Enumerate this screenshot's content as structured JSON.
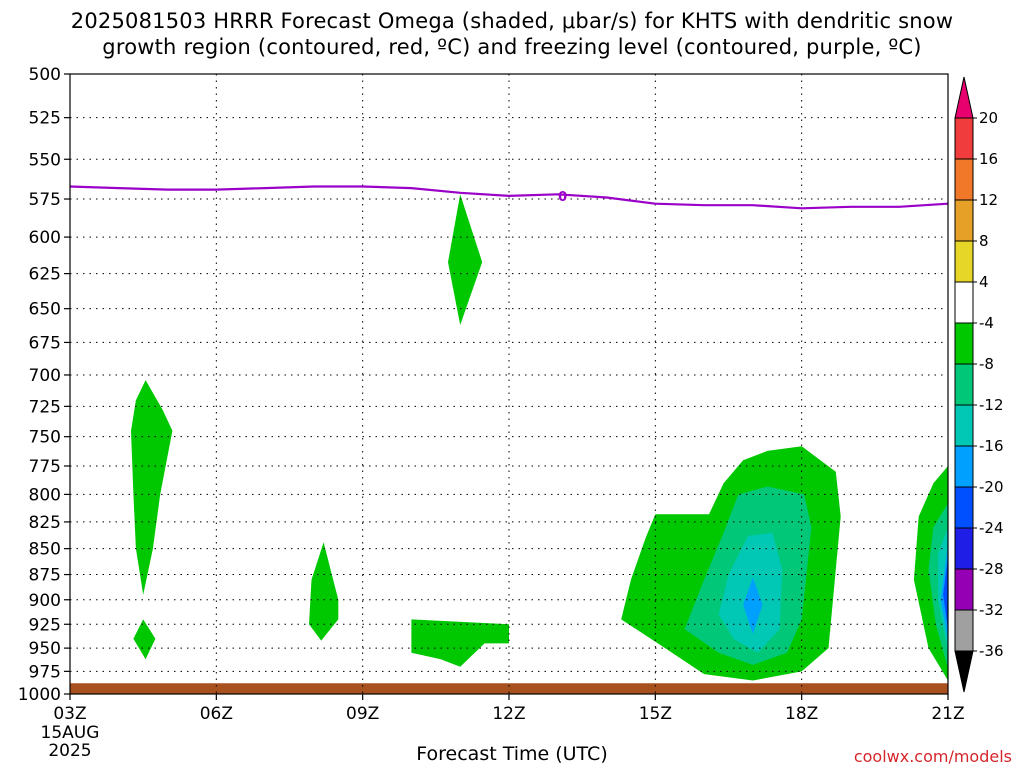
{
  "title": {
    "line1": "2025081503 HRRR Forecast Omega (shaded, μbar/s) for KHTS with dendritic snow",
    "line2": "growth region (contoured, red, ºC) and freezing level (contoured, purple, ºC)"
  },
  "credit": "coolwx.com/models",
  "chart_data": {
    "type": "heatmap",
    "title": "2025081503 HRRR Forecast Omega (shaded, μbar/s) for KHTS with dendritic snow growth region (contoured, red, ºC) and freezing level (contoured, purple, ºC)",
    "xlabel": "Forecast Time (UTC)",
    "ylabel": "",
    "x_ticks": [
      {
        "hour": 0,
        "label": "03Z"
      },
      {
        "hour": 3,
        "label": "06Z"
      },
      {
        "hour": 6,
        "label": "09Z"
      },
      {
        "hour": 9,
        "label": "12Z"
      },
      {
        "hour": 12,
        "label": "15Z"
      },
      {
        "hour": 15,
        "label": "18Z"
      },
      {
        "hour": 18,
        "label": "21Z"
      }
    ],
    "x_date_label": [
      "15AUG",
      "2025"
    ],
    "y_ticks": [
      500,
      525,
      550,
      575,
      600,
      625,
      650,
      675,
      700,
      725,
      750,
      775,
      800,
      825,
      850,
      875,
      900,
      925,
      950,
      975,
      1000
    ],
    "ylim": [
      1000,
      500
    ],
    "grid": true,
    "colorbar": {
      "labels": [
        "20",
        "16",
        "12",
        "8",
        "4",
        "-4",
        "-8",
        "-12",
        "-16",
        "-20",
        "-24",
        "-28",
        "-32",
        "-36"
      ],
      "colors": [
        "#e8006e",
        "#f03c3c",
        "#f07828",
        "#e6a028",
        "#e6d628",
        "#ffffff",
        "#00c800",
        "#00c878",
        "#00c8b4",
        "#00a0ff",
        "#0050ff",
        "#1e1ee6",
        "#9600b4",
        "#a0a0a0",
        "#000000"
      ]
    },
    "freezing_level": {
      "label": "0",
      "color": "#9a00c8",
      "points": [
        [
          0,
          567
        ],
        [
          1,
          568
        ],
        [
          2,
          569
        ],
        [
          3,
          569
        ],
        [
          4,
          568
        ],
        [
          5,
          567
        ],
        [
          6,
          567
        ],
        [
          7,
          568
        ],
        [
          8,
          571
        ],
        [
          9,
          573
        ],
        [
          10,
          572
        ],
        [
          11,
          574
        ],
        [
          12,
          578
        ],
        [
          13,
          579
        ],
        [
          14,
          579
        ],
        [
          15,
          581
        ],
        [
          16,
          580
        ],
        [
          17,
          580
        ],
        [
          18,
          578
        ]
      ]
    },
    "omega_regions": [
      {
        "value": -4,
        "color": "#00c800",
        "points": [
          [
            1.55,
            704
          ],
          [
            1.9,
            728
          ],
          [
            2.1,
            745
          ],
          [
            1.85,
            800
          ],
          [
            1.7,
            850
          ],
          [
            1.5,
            895
          ],
          [
            1.35,
            850
          ],
          [
            1.3,
            800
          ],
          [
            1.25,
            745
          ],
          [
            1.35,
            720
          ]
        ]
      },
      {
        "value": -4,
        "color": "#00c800",
        "points": [
          [
            1.5,
            920
          ],
          [
            1.75,
            940
          ],
          [
            1.55,
            962
          ],
          [
            1.3,
            940
          ]
        ]
      },
      {
        "value": -4,
        "color": "#00c800",
        "points": [
          [
            8.0,
            572
          ],
          [
            8.45,
            617
          ],
          [
            8.0,
            662
          ],
          [
            7.75,
            617
          ]
        ]
      },
      {
        "value": -4,
        "color": "#00c800",
        "points": [
          [
            5.2,
            844
          ],
          [
            5.5,
            900
          ],
          [
            5.5,
            920
          ],
          [
            5.15,
            942
          ],
          [
            4.9,
            925
          ],
          [
            4.95,
            880
          ]
        ]
      },
      {
        "value": -4,
        "color": "#00c800",
        "points": [
          [
            7.0,
            920
          ],
          [
            9.0,
            925
          ],
          [
            9.0,
            945
          ],
          [
            8.5,
            945
          ],
          [
            8.0,
            970
          ],
          [
            7.6,
            962
          ],
          [
            7.0,
            955
          ]
        ]
      },
      {
        "value": -4,
        "color": "#00c800",
        "points": [
          [
            12.0,
            818
          ],
          [
            13.1,
            818
          ],
          [
            13.4,
            790
          ],
          [
            13.8,
            770
          ],
          [
            14.3,
            762
          ],
          [
            15.0,
            758
          ],
          [
            15.7,
            780
          ],
          [
            15.8,
            820
          ],
          [
            15.55,
            950
          ],
          [
            15.0,
            975
          ],
          [
            14.0,
            985
          ],
          [
            13.0,
            978
          ],
          [
            12.2,
            950
          ],
          [
            11.3,
            920
          ],
          [
            11.5,
            880
          ],
          [
            11.8,
            840
          ]
        ]
      },
      {
        "value": -8,
        "color": "#00c878",
        "points": [
          [
            13.7,
            800
          ],
          [
            14.3,
            793
          ],
          [
            15.05,
            800
          ],
          [
            15.2,
            830
          ],
          [
            15.0,
            920
          ],
          [
            14.7,
            955
          ],
          [
            14.0,
            968
          ],
          [
            13.3,
            955
          ],
          [
            12.6,
            930
          ],
          [
            13.0,
            880
          ],
          [
            13.4,
            835
          ]
        ]
      },
      {
        "value": -12,
        "color": "#00c8b4",
        "points": [
          [
            13.9,
            838
          ],
          [
            14.4,
            835
          ],
          [
            14.6,
            870
          ],
          [
            14.55,
            930
          ],
          [
            14.1,
            955
          ],
          [
            13.6,
            940
          ],
          [
            13.3,
            915
          ],
          [
            13.5,
            875
          ]
        ]
      },
      {
        "value": -16,
        "color": "#00a0ff",
        "points": [
          [
            14.0,
            878
          ],
          [
            14.2,
            905
          ],
          [
            14.0,
            935
          ],
          [
            13.8,
            905
          ]
        ]
      },
      {
        "value": -4,
        "color": "#00c800",
        "points": [
          [
            18.0,
            775
          ],
          [
            18.0,
            985
          ],
          [
            17.6,
            950
          ],
          [
            17.3,
            880
          ],
          [
            17.4,
            820
          ],
          [
            17.7,
            790
          ]
        ]
      },
      {
        "value": -8,
        "color": "#00c878",
        "points": [
          [
            18.0,
            808
          ],
          [
            18.0,
            972
          ],
          [
            17.75,
            925
          ],
          [
            17.6,
            870
          ],
          [
            17.7,
            830
          ]
        ]
      },
      {
        "value": -12,
        "color": "#00c8b4",
        "points": [
          [
            18.0,
            830
          ],
          [
            18.0,
            955
          ],
          [
            17.8,
            900
          ],
          [
            17.8,
            855
          ]
        ]
      },
      {
        "value": -16,
        "color": "#00a0ff",
        "points": [
          [
            18.0,
            845
          ],
          [
            18.0,
            942
          ],
          [
            17.85,
            900
          ]
        ]
      },
      {
        "value": -20,
        "color": "#0050ff",
        "points": [
          [
            18.0,
            858
          ],
          [
            18.0,
            930
          ],
          [
            17.9,
            895
          ]
        ]
      }
    ],
    "surface": {
      "color": "#a8501e",
      "points": [
        [
          0,
          988
        ],
        [
          18,
          988
        ],
        [
          18,
          1000
        ],
        [
          0,
          1000
        ]
      ]
    }
  }
}
